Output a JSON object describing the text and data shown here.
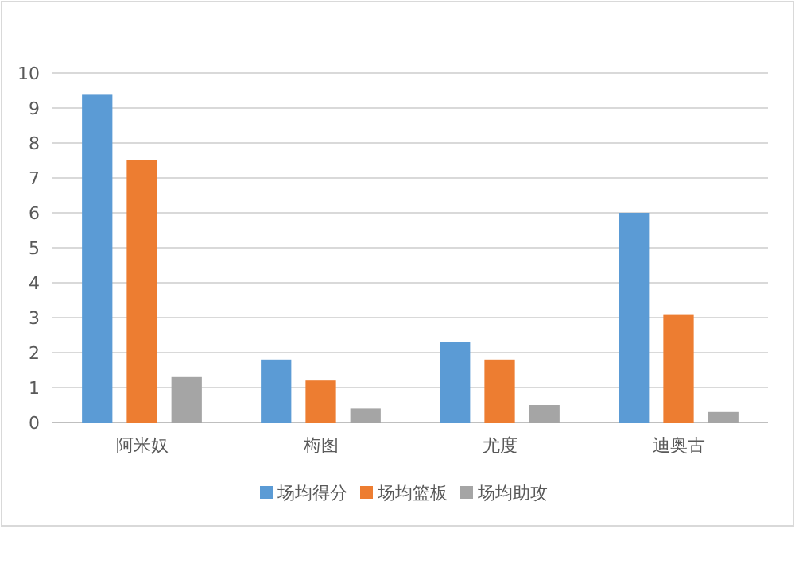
{
  "chart_data": {
    "type": "bar",
    "categories": [
      "阿米奴",
      "梅图",
      "尤度",
      "迪奥古"
    ],
    "series": [
      {
        "name": "场均得分",
        "color": "#5b9bd5",
        "values": [
          9.4,
          1.8,
          2.3,
          6.0
        ]
      },
      {
        "name": "场均篮板",
        "color": "#ed7d31",
        "values": [
          7.5,
          1.2,
          1.8,
          3.1
        ]
      },
      {
        "name": "场均助攻",
        "color": "#a5a5a5",
        "values": [
          1.3,
          0.4,
          0.5,
          0.3
        ]
      }
    ],
    "ylim": [
      0,
      10
    ],
    "yticks": [
      0,
      1,
      2,
      3,
      4,
      5,
      6,
      7,
      8,
      9,
      10
    ],
    "grid": "y",
    "legend": "bottom"
  }
}
